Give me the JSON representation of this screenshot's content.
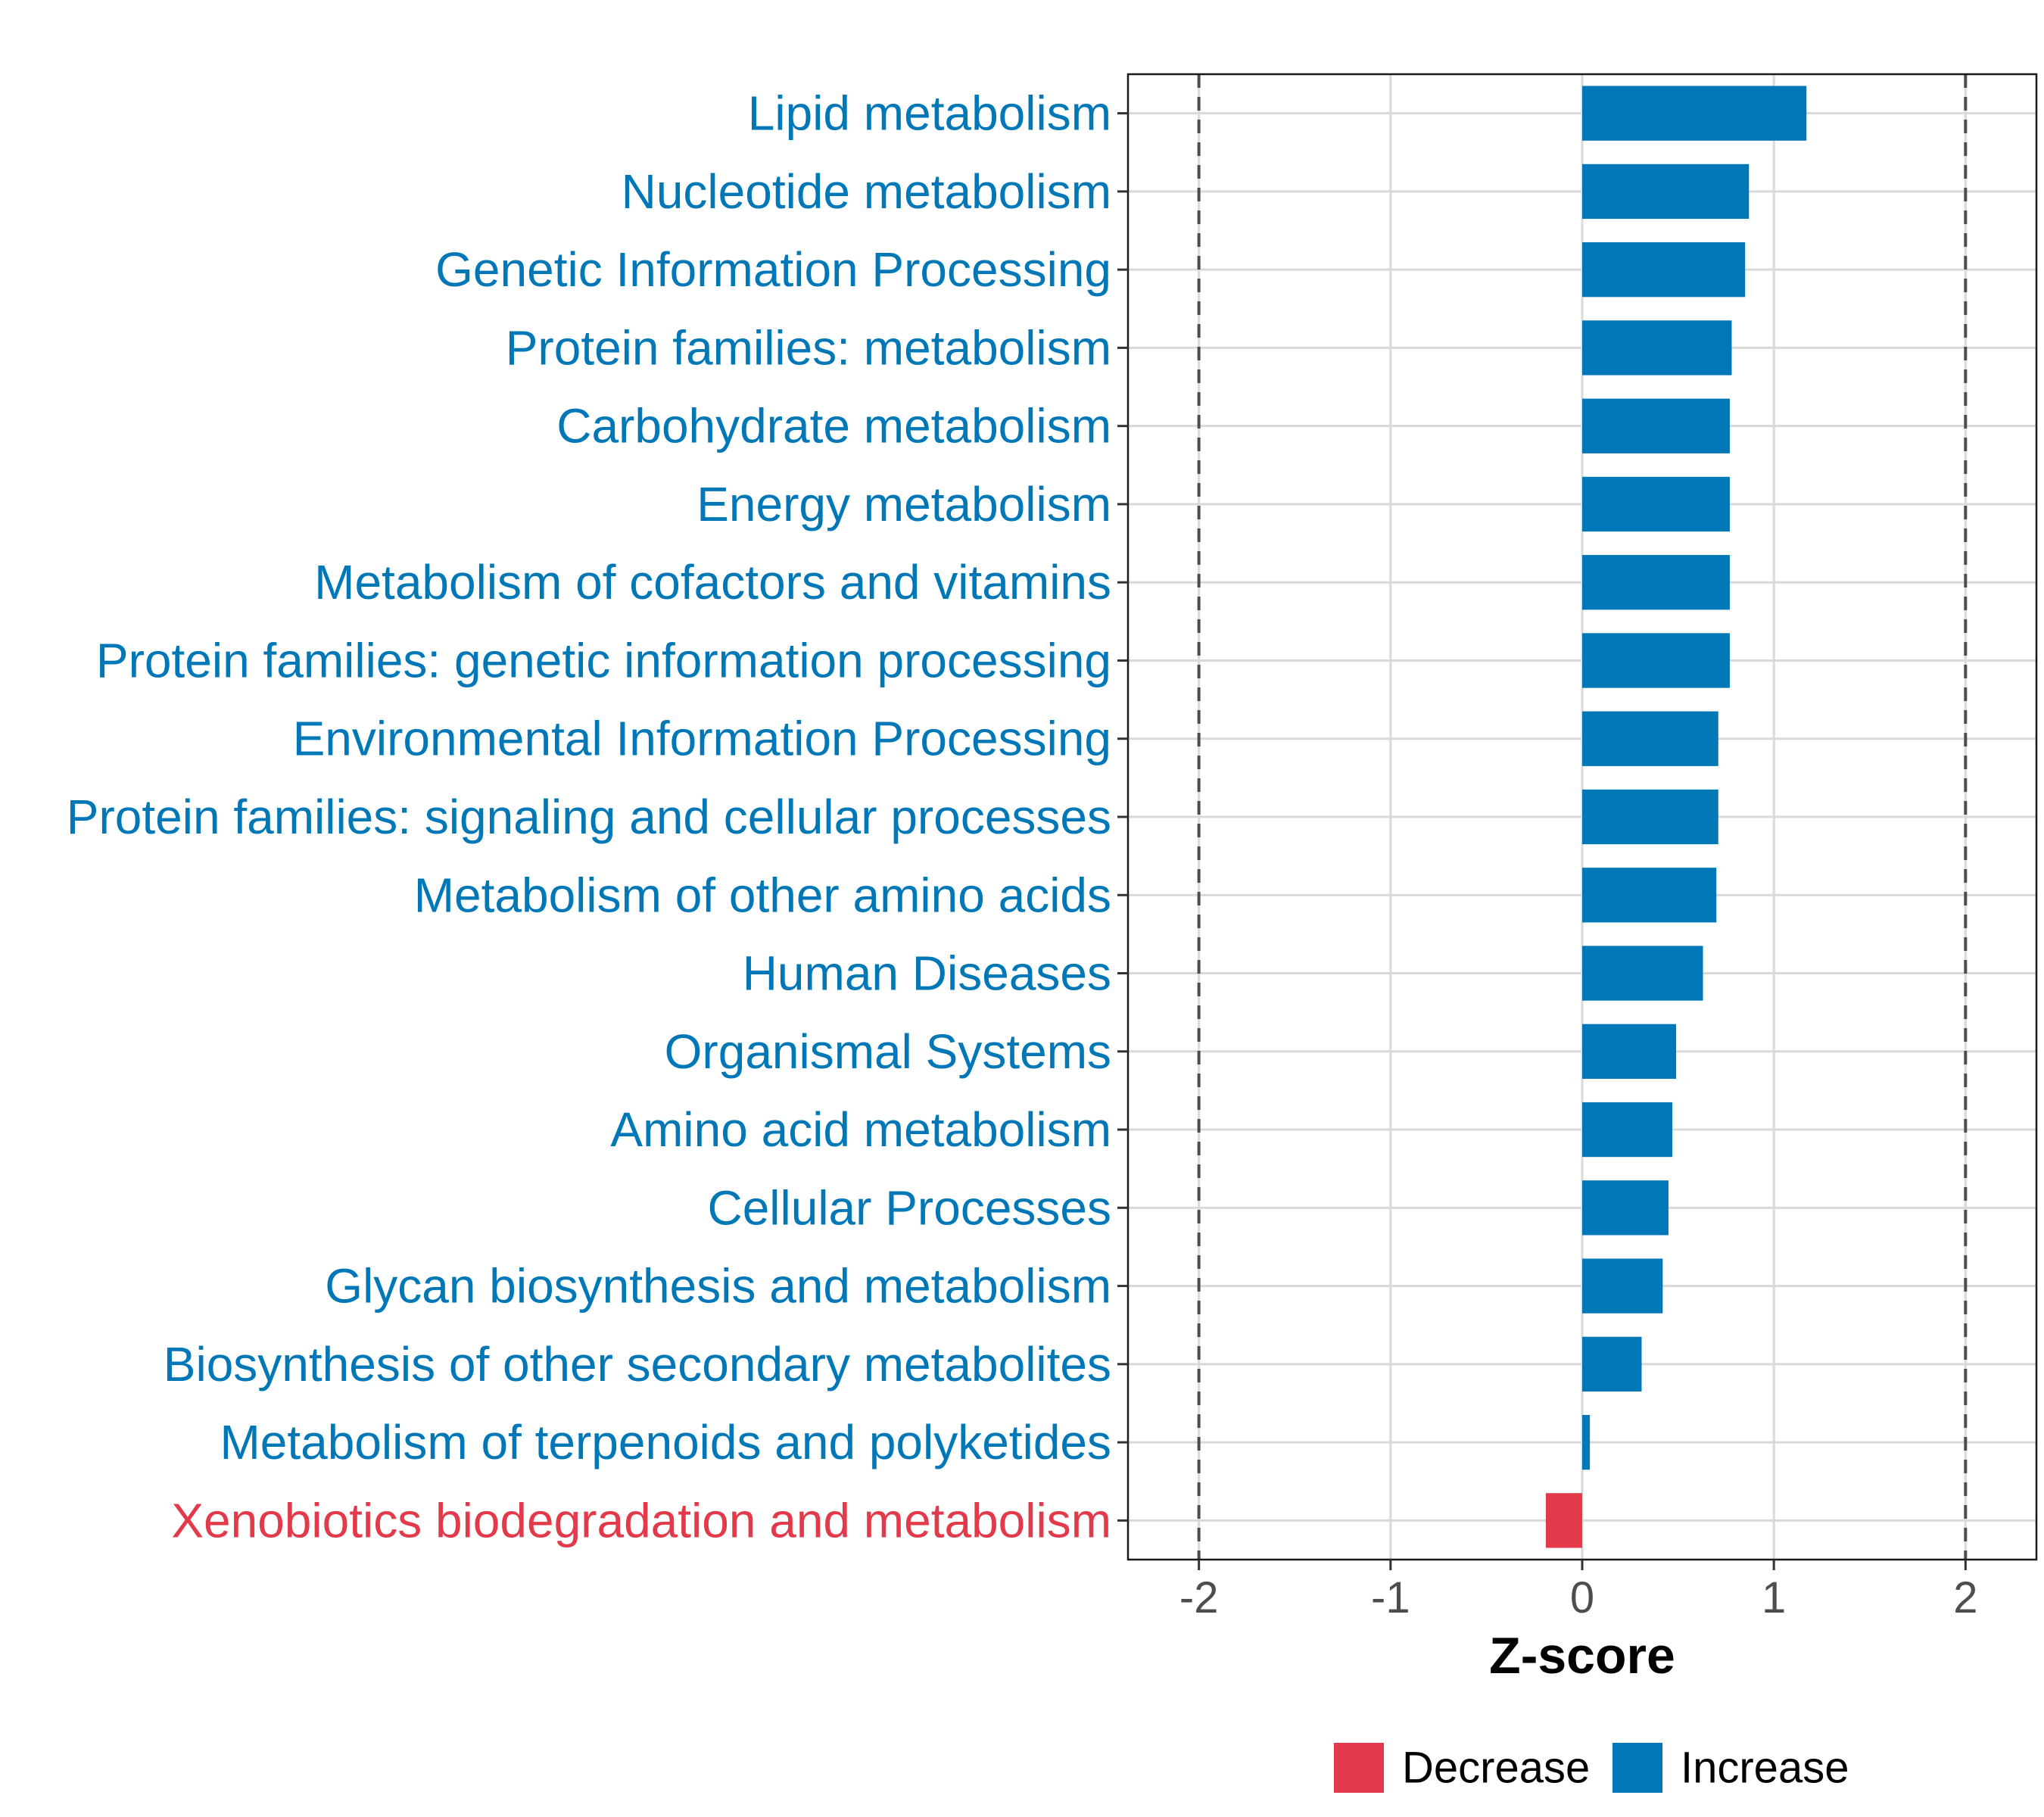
{
  "chart_data": {
    "type": "bar",
    "orientation": "horizontal",
    "title": "",
    "xlabel": "Z-score",
    "ylabel": "",
    "xlim": [
      -2.37,
      2.37
    ],
    "xticks": [
      -2,
      -1,
      0,
      1,
      2
    ],
    "xtick_labels": [
      "-2",
      "-1",
      "0",
      "1",
      "2"
    ],
    "reference_lines": [
      -2,
      2
    ],
    "grid": true,
    "legend_position": "bottom",
    "colors": {
      "Decrease": "#E23A4A",
      "Increase": "#0077B6"
    },
    "legend": [
      {
        "label": "Decrease",
        "color": "#E23A4A"
      },
      {
        "label": "Increase",
        "color": "#0077B6"
      }
    ],
    "categories": [
      "Lipid metabolism",
      "Nucleotide metabolism",
      "Genetic Information Processing",
      "Protein families: metabolism",
      "Carbohydrate metabolism",
      "Energy metabolism",
      "Metabolism of cofactors and vitamins",
      "Protein families: genetic information processing",
      "Environmental Information Processing",
      "Protein families: signaling and cellular processes",
      "Metabolism of other amino acids",
      "Human Diseases",
      "Organismal Systems",
      "Amino acid metabolism",
      "Cellular Processes",
      "Glycan biosynthesis and metabolism",
      "Biosynthesis of other secondary metabolites",
      "Metabolism of terpenoids and polyketides",
      "Xenobiotics biodegradation and metabolism"
    ],
    "values": [
      1.17,
      0.87,
      0.85,
      0.78,
      0.77,
      0.77,
      0.77,
      0.77,
      0.71,
      0.71,
      0.7,
      0.63,
      0.49,
      0.47,
      0.45,
      0.42,
      0.31,
      0.04,
      -0.19
    ],
    "groups": [
      "Increase",
      "Increase",
      "Increase",
      "Increase",
      "Increase",
      "Increase",
      "Increase",
      "Increase",
      "Increase",
      "Increase",
      "Increase",
      "Increase",
      "Increase",
      "Increase",
      "Increase",
      "Increase",
      "Increase",
      "Increase",
      "Decrease"
    ]
  }
}
